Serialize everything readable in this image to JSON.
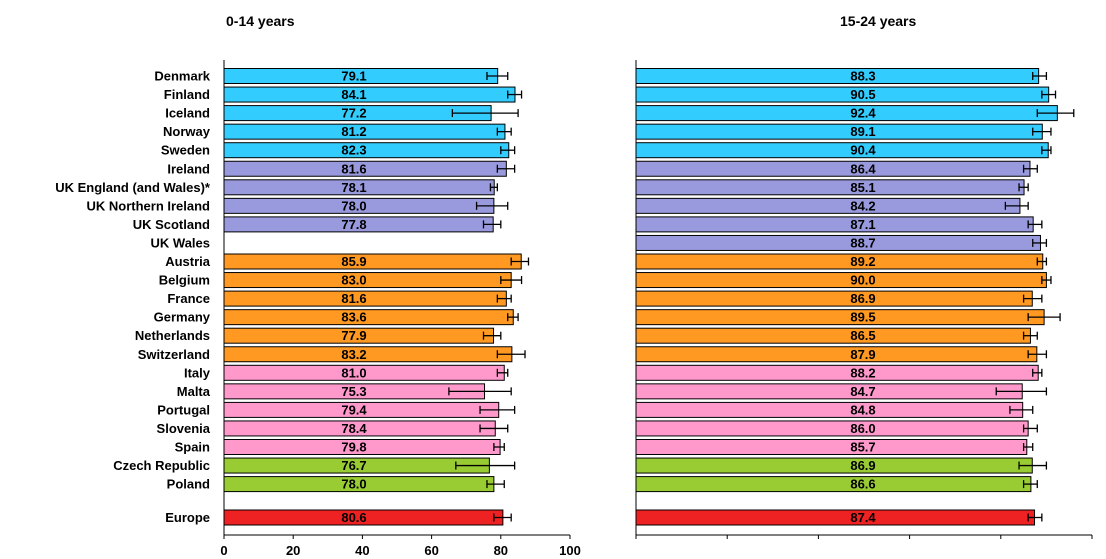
{
  "chart_data": {
    "type": "bar",
    "orientation": "horizontal",
    "categories": [
      "Denmark",
      "Finland",
      "Iceland",
      "Norway",
      "Sweden",
      "Ireland",
      "UK England (and Wales)*",
      "UK Northern Ireland",
      "UK Scotland",
      "UK Wales",
      "Austria",
      "Belgium",
      "France",
      "Germany",
      "Netherlands",
      "Switzerland",
      "Italy",
      "Malta",
      "Portugal",
      "Slovenia",
      "Spain",
      "Czech Republic",
      "Poland",
      "Europe"
    ],
    "groups": [
      "nordic",
      "nordic",
      "nordic",
      "nordic",
      "nordic",
      "uk-ireland",
      "uk-ireland",
      "uk-ireland",
      "uk-ireland",
      "uk-ireland",
      "central",
      "central",
      "central",
      "central",
      "central",
      "central",
      "southern",
      "southern",
      "southern",
      "southern",
      "southern",
      "eastern",
      "eastern",
      "europe"
    ],
    "group_colors": {
      "nordic": "#33CCFF",
      "uk-ireland": "#9999DD",
      "central": "#FF9922",
      "southern": "#FF99CC",
      "eastern": "#99CC33",
      "europe": "#EE2222"
    },
    "xlim": [
      0,
      100
    ],
    "xticks": [
      "0",
      "20",
      "40",
      "60",
      "80",
      "100"
    ],
    "panels": [
      {
        "title": "0-14 years",
        "values": [
          79.1,
          84.1,
          77.2,
          81.2,
          82.3,
          81.6,
          78.1,
          78.0,
          77.8,
          null,
          85.9,
          83.0,
          81.6,
          83.6,
          77.9,
          83.2,
          81.0,
          75.3,
          79.4,
          78.4,
          79.8,
          76.7,
          78.0,
          80.6
        ],
        "labels": [
          "79.1",
          "84.1",
          "77.2",
          "81.2",
          "82.3",
          "81.6",
          "78.1",
          "78.0",
          "77.8",
          "",
          "85.9",
          "83.0",
          "81.6",
          "83.6",
          "77.9",
          "83.2",
          "81.0",
          "75.3",
          "79.4",
          "78.4",
          "79.8",
          "76.7",
          "78.0",
          "80.6"
        ],
        "ci_low": [
          76,
          82,
          66,
          79,
          80,
          79,
          77,
          73,
          75,
          null,
          83,
          80,
          79,
          82,
          75,
          79,
          79,
          65,
          74,
          74,
          78,
          67,
          76,
          78
        ],
        "ci_high": [
          82,
          86,
          85,
          83,
          84,
          84,
          79,
          82,
          80,
          null,
          88,
          86,
          83,
          85,
          80,
          87,
          82,
          83,
          84,
          82,
          81,
          84,
          81,
          83
        ]
      },
      {
        "title": "15-24 years",
        "values": [
          88.3,
          90.5,
          92.4,
          89.1,
          90.4,
          86.4,
          85.1,
          84.2,
          87.1,
          88.7,
          89.2,
          90.0,
          86.9,
          89.5,
          86.5,
          87.9,
          88.2,
          84.7,
          84.8,
          86.0,
          85.7,
          86.9,
          86.6,
          87.4
        ],
        "labels": [
          "88.3",
          "90.5",
          "92.4",
          "89.1",
          "90.4",
          "86.4",
          "85.1",
          "84.2",
          "87.1",
          "88.7",
          "89.2",
          "90.0",
          "86.9",
          "89.5",
          "86.5",
          "87.9",
          "88.2",
          "84.7",
          "84.8",
          "86.0",
          "85.7",
          "86.9",
          "86.6",
          "87.4"
        ],
        "ci_low": [
          87,
          89,
          88,
          87,
          89,
          85,
          84,
          81,
          86,
          87,
          88,
          89,
          85,
          86,
          85,
          86,
          87,
          79,
          82,
          85,
          85,
          84,
          85,
          86
        ],
        "ci_high": [
          90,
          92,
          96,
          91,
          91,
          88,
          86,
          86,
          89,
          90,
          90,
          91,
          89,
          93,
          88,
          90,
          89,
          90,
          87,
          88,
          87,
          90,
          88,
          89
        ]
      }
    ],
    "grid": false,
    "legend": "none"
  }
}
